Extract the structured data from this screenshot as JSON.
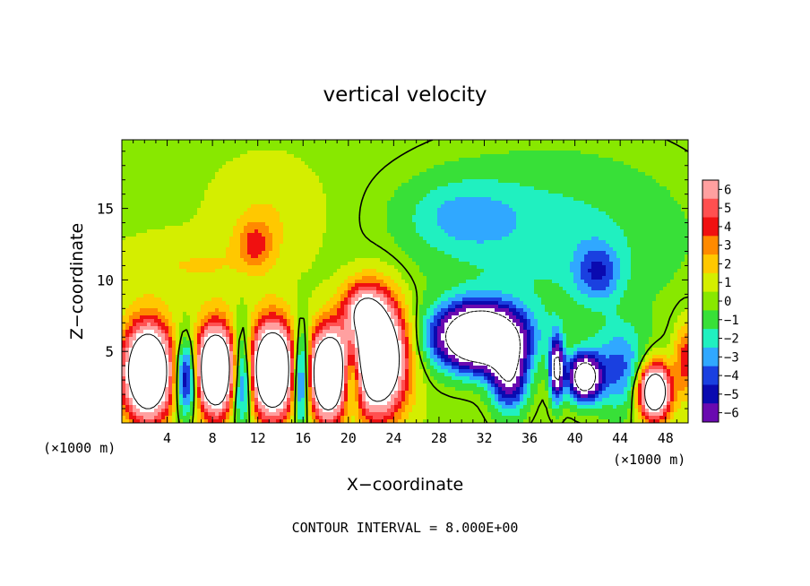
{
  "chart_data": {
    "type": "heatmap",
    "title": "vertical velocity",
    "xlabel": "X−coordinate",
    "ylabel": "Z−coordinate",
    "x_unit_left": "(×1000 m)",
    "x_unit_right": "(×1000 m)",
    "footer": "CONTOUR INTERVAL = 8.000E+00",
    "xlim": [
      0,
      50
    ],
    "ylim": [
      0,
      19.8
    ],
    "x_ticks": [
      4,
      8,
      12,
      16,
      20,
      24,
      28,
      32,
      36,
      40,
      44,
      48
    ],
    "x_tick_labels": [
      "4",
      "8",
      "12",
      "16",
      "20",
      "24",
      "28",
      "32",
      "36",
      "40",
      "44",
      "48"
    ],
    "y_ticks": [
      5,
      10,
      15
    ],
    "y_tick_labels": [
      "5",
      "10",
      "15"
    ],
    "colorbar": {
      "levels": [
        6,
        5,
        4,
        3,
        2,
        1,
        0,
        -1,
        -2,
        -3,
        -4,
        -5,
        -6
      ],
      "labels": [
        "6",
        "5",
        "4",
        "3",
        "2",
        "1",
        "0",
        "−1",
        "−2",
        "−3",
        "−4",
        "−5",
        "−6"
      ],
      "colors": [
        "#ffa0a0",
        "#ff5050",
        "#f01010",
        "#ff8a00",
        "#ffc800",
        "#d4ee00",
        "#88e800",
        "#38e038",
        "#20f0c0",
        "#30a8ff",
        "#1a40e0",
        "#0a0ab0",
        "#6a0ab0"
      ]
    },
    "background_value": 0.3,
    "features": [
      {
        "x": 2.3,
        "z": 3.6,
        "rx": 2.1,
        "rz": 3.2,
        "w": 15
      },
      {
        "x": 5.7,
        "z": 3.2,
        "rx": 1.0,
        "rz": 2.6,
        "w": -8
      },
      {
        "x": 8.3,
        "z": 3.7,
        "rx": 1.8,
        "rz": 3.0,
        "w": 15
      },
      {
        "x": 10.6,
        "z": 3.2,
        "rx": 1.0,
        "rz": 3.2,
        "w": -8
      },
      {
        "x": 13.3,
        "z": 3.7,
        "rx": 2.0,
        "rz": 3.2,
        "w": 15
      },
      {
        "x": 15.8,
        "z": 3.2,
        "rx": 0.8,
        "rz": 3.2,
        "w": -8
      },
      {
        "x": 18.2,
        "z": 3.4,
        "rx": 1.6,
        "rz": 3.0,
        "w": 15
      },
      {
        "x": 20.3,
        "z": 3.3,
        "rx": 0.9,
        "rz": 2.5,
        "w": -6
      },
      {
        "x": 22.6,
        "z": 4.6,
        "rx": 2.4,
        "rz": 3.8,
        "w": 15
      },
      {
        "x": 21.2,
        "z": 8.0,
        "rx": 1.8,
        "rz": 1.8,
        "w": 5
      },
      {
        "x": 31.6,
        "z": 6.0,
        "rx": 3.8,
        "rz": 2.2,
        "w": -15
      },
      {
        "x": 34.2,
        "z": 3.2,
        "rx": 1.6,
        "rz": 2.4,
        "w": -7
      },
      {
        "x": 38.4,
        "z": 3.8,
        "rx": 0.6,
        "rz": 2.2,
        "w": -9
      },
      {
        "x": 40.8,
        "z": 3.2,
        "rx": 1.4,
        "rz": 1.6,
        "w": -11
      },
      {
        "x": 44.0,
        "z": 3.8,
        "rx": 2.4,
        "rz": 3.0,
        "w": -4
      },
      {
        "x": 47.0,
        "z": 2.2,
        "rx": 1.4,
        "rz": 1.9,
        "w": 13
      },
      {
        "x": 49.8,
        "z": 4.5,
        "rx": 1.0,
        "rz": 2.5,
        "w": 4
      },
      {
        "x": 11.8,
        "z": 12.5,
        "rx": 1.5,
        "rz": 1.6,
        "w": 3
      },
      {
        "x": 13.0,
        "z": 14.5,
        "rx": 4.5,
        "rz": 3.5,
        "w": 1.2
      },
      {
        "x": 6.0,
        "z": 11.0,
        "rx": 6.0,
        "rz": 2.0,
        "w": 1.2
      },
      {
        "x": 38.0,
        "z": 13.0,
        "rx": 12.0,
        "rz": 6.0,
        "w": -2.2
      },
      {
        "x": 42.0,
        "z": 10.5,
        "rx": 2.0,
        "rz": 2.0,
        "w": -3.5
      },
      {
        "x": 30.0,
        "z": 14.5,
        "rx": 5.0,
        "rz": 2.5,
        "w": -2.2
      }
    ]
  }
}
